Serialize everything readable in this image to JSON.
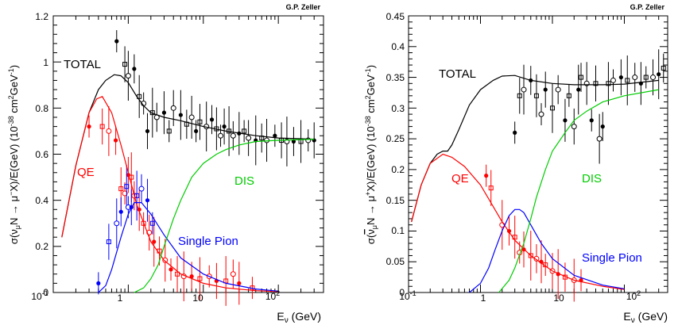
{
  "chart_data": [
    {
      "type": "line",
      "author": "G.P. Zeller",
      "xscale": "log",
      "xlim": [
        0.1,
        400
      ],
      "ylim": [
        0,
        1.2
      ],
      "xticks": [
        0.1,
        1,
        10,
        100
      ],
      "xtick_labels": [
        "10⁻¹",
        "1",
        "10",
        "10²"
      ],
      "yticks": [
        0,
        0.2,
        0.4,
        0.6,
        0.8,
        1.0,
        1.2
      ],
      "ytick_labels": [
        "0",
        "0.2",
        "0.4",
        "0.6",
        "0.8",
        "1",
        "1.2"
      ],
      "xlabel": "Eν (GeV)",
      "ylabel": "σ(νμN → μ⁻X)/E(GeV)  (10⁻³⁸ cm²GeV⁻¹)",
      "series": [
        {
          "name": "TOTAL",
          "color": "#000000",
          "x": [
            0.13,
            0.2,
            0.3,
            0.4,
            0.5,
            0.65,
            0.8,
            1.0,
            1.3,
            1.6,
            2.0,
            3,
            5,
            10,
            20,
            50,
            100,
            300
          ],
          "y": [
            0.24,
            0.55,
            0.78,
            0.88,
            0.92,
            0.945,
            0.94,
            0.91,
            0.85,
            0.81,
            0.78,
            0.76,
            0.745,
            0.72,
            0.7,
            0.68,
            0.67,
            0.665
          ]
        },
        {
          "name": "QE",
          "color": "#ff0000",
          "x": [
            0.13,
            0.2,
            0.3,
            0.38,
            0.45,
            0.6,
            0.8,
            1.0,
            1.3,
            2,
            3,
            5,
            10,
            20,
            50,
            100
          ],
          "y": [
            0.24,
            0.55,
            0.78,
            0.84,
            0.85,
            0.78,
            0.64,
            0.52,
            0.38,
            0.22,
            0.14,
            0.08,
            0.04,
            0.02,
            0.008,
            0.004
          ]
        },
        {
          "name": "Single Pion",
          "color": "#0000ff",
          "x": [
            0.4,
            0.5,
            0.6,
            0.8,
            1.0,
            1.2,
            1.5,
            2,
            3,
            5,
            10,
            20,
            50,
            100
          ],
          "y": [
            0.0,
            0.03,
            0.1,
            0.24,
            0.34,
            0.39,
            0.39,
            0.34,
            0.25,
            0.15,
            0.08,
            0.04,
            0.015,
            0.006
          ]
        },
        {
          "name": "DIS",
          "color": "#00cc00",
          "x": [
            1.2,
            1.6,
            2,
            2.5,
            3,
            4,
            5,
            7,
            10,
            15,
            20,
            30,
            50,
            100,
            300
          ],
          "y": [
            0.0,
            0.02,
            0.06,
            0.12,
            0.2,
            0.32,
            0.4,
            0.5,
            0.56,
            0.6,
            0.62,
            0.64,
            0.655,
            0.66,
            0.665
          ]
        }
      ],
      "measurements": [
        {
          "group": "TOTAL",
          "color": "#000000",
          "points": [
            [
              0.7,
              1.09
            ],
            [
              0.9,
              0.99
            ],
            [
              1.0,
              0.94
            ],
            [
              1.2,
              0.97
            ],
            [
              1.4,
              0.85
            ],
            [
              1.6,
              0.82
            ],
            [
              1.8,
              0.7
            ],
            [
              2.1,
              0.78
            ],
            [
              2.4,
              0.76
            ],
            [
              3,
              0.78
            ],
            [
              3.5,
              0.7
            ],
            [
              4,
              0.8
            ],
            [
              5,
              0.77
            ],
            [
              6,
              0.73
            ],
            [
              7,
              0.76
            ],
            [
              8,
              0.7
            ],
            [
              9,
              0.74
            ],
            [
              11,
              0.72
            ],
            [
              13,
              0.75
            ],
            [
              15,
              0.71
            ],
            [
              17,
              0.68
            ],
            [
              19,
              0.72
            ],
            [
              22,
              0.7
            ],
            [
              25,
              0.68
            ],
            [
              30,
              0.69
            ],
            [
              35,
              0.7
            ],
            [
              40,
              0.67
            ],
            [
              50,
              0.66
            ],
            [
              60,
              0.67
            ],
            [
              70,
              0.66
            ],
            [
              90,
              0.68
            ],
            [
              110,
              0.66
            ],
            [
              130,
              0.655
            ],
            [
              160,
              0.655
            ],
            [
              200,
              0.655
            ],
            [
              250,
              0.66
            ],
            [
              300,
              0.66
            ]
          ]
        },
        {
          "group": "QE",
          "color": "#ff0000",
          "points": [
            [
              0.3,
              0.72
            ],
            [
              0.45,
              0.72
            ],
            [
              0.55,
              0.7
            ],
            [
              0.68,
              0.66
            ],
            [
              0.8,
              0.45
            ],
            [
              0.9,
              0.43
            ],
            [
              1.0,
              0.51
            ],
            [
              1.1,
              0.5
            ],
            [
              1.2,
              0.42
            ],
            [
              1.4,
              0.36
            ],
            [
              1.6,
              0.3
            ],
            [
              1.9,
              0.26
            ],
            [
              2.2,
              0.22
            ],
            [
              2.6,
              0.18
            ],
            [
              3.1,
              0.14
            ],
            [
              3.7,
              0.1
            ],
            [
              4.5,
              0.08
            ],
            [
              5.5,
              0.07
            ],
            [
              7,
              0.07
            ],
            [
              9,
              0.06
            ],
            [
              12,
              0.07
            ],
            [
              15,
              0.05
            ],
            [
              20,
              0.05
            ],
            [
              25,
              0.08
            ],
            [
              30,
              0.04
            ],
            [
              45,
              0.02
            ]
          ]
        },
        {
          "group": "Single Pion",
          "color": "#0000ff",
          "points": [
            [
              0.4,
              0.04
            ],
            [
              0.55,
              0.22
            ],
            [
              0.7,
              0.3
            ],
            [
              0.8,
              0.35
            ],
            [
              0.95,
              0.46
            ],
            [
              1.0,
              0.37
            ],
            [
              1.1,
              0.37
            ],
            [
              1.3,
              0.42
            ],
            [
              1.5,
              0.45
            ],
            [
              1.8,
              0.4
            ],
            [
              2.1,
              0.3
            ]
          ]
        }
      ],
      "annotations": [
        "TOTAL",
        "QE",
        "DIS",
        "Single Pion"
      ],
      "legend": "none"
    },
    {
      "type": "line",
      "author": "G.P. Zeller",
      "xscale": "log",
      "xlim": [
        0.1,
        400
      ],
      "ylim": [
        0,
        0.45
      ],
      "xticks": [
        0.1,
        1,
        10,
        100
      ],
      "xtick_labels": [
        "10⁻¹",
        "1",
        "10",
        "10²"
      ],
      "yticks": [
        0,
        0.05,
        0.1,
        0.15,
        0.2,
        0.25,
        0.3,
        0.35,
        0.4,
        0.45
      ],
      "ytick_labels": [
        "0",
        "0.05",
        "0.1",
        "0.15",
        "0.2",
        "0.25",
        "0.3",
        "0.35",
        "0.4",
        "0.45"
      ],
      "xlabel": "Eν (GeV)",
      "ylabel": "σ(ν̄μN → μ⁺X)/E(GeV)  (10⁻³⁸ cm²GeV⁻¹)",
      "series": [
        {
          "name": "TOTAL",
          "color": "#000000",
          "x": [
            0.11,
            0.15,
            0.2,
            0.25,
            0.3,
            0.35,
            0.4,
            0.5,
            0.7,
            1.0,
            1.5,
            2,
            3,
            5,
            10,
            20,
            50,
            100,
            300
          ],
          "y": [
            0.115,
            0.175,
            0.21,
            0.225,
            0.23,
            0.23,
            0.24,
            0.265,
            0.305,
            0.33,
            0.345,
            0.352,
            0.353,
            0.345,
            0.34,
            0.338,
            0.338,
            0.339,
            0.345
          ]
        },
        {
          "name": "QE",
          "color": "#ff0000",
          "x": [
            0.11,
            0.15,
            0.2,
            0.3,
            0.4,
            0.6,
            1.0,
            1.5,
            2,
            3,
            5,
            10,
            20,
            50,
            100
          ],
          "y": [
            0.115,
            0.175,
            0.21,
            0.225,
            0.22,
            0.205,
            0.175,
            0.14,
            0.115,
            0.085,
            0.06,
            0.035,
            0.02,
            0.01,
            0.005
          ]
        },
        {
          "name": "Single Pion",
          "color": "#0000ff",
          "x": [
            0.7,
            1.0,
            1.3,
            1.6,
            2,
            2.5,
            3,
            3.5,
            4,
            5,
            7,
            10,
            20,
            50,
            100
          ],
          "y": [
            0.0,
            0.015,
            0.04,
            0.07,
            0.1,
            0.125,
            0.135,
            0.135,
            0.13,
            0.11,
            0.08,
            0.055,
            0.028,
            0.012,
            0.006
          ]
        },
        {
          "name": "DIS",
          "color": "#00cc00",
          "x": [
            1.8,
            2.5,
            3,
            4,
            5,
            6,
            8,
            10,
            15,
            20,
            30,
            50,
            100,
            300
          ],
          "y": [
            0.0,
            0.02,
            0.04,
            0.08,
            0.12,
            0.155,
            0.2,
            0.23,
            0.26,
            0.28,
            0.295,
            0.31,
            0.32,
            0.33
          ]
        }
      ],
      "measurements": [
        {
          "group": "TOTAL",
          "color": "#000000",
          "points": [
            [
              3,
              0.26
            ],
            [
              3.5,
              0.32
            ],
            [
              4,
              0.33
            ],
            [
              5,
              0.345
            ],
            [
              6,
              0.32
            ],
            [
              7,
              0.29
            ],
            [
              8,
              0.33
            ],
            [
              10,
              0.3
            ],
            [
              12,
              0.33
            ],
            [
              15,
              0.28
            ],
            [
              17,
              0.32
            ],
            [
              20,
              0.27
            ],
            [
              23,
              0.33
            ],
            [
              25,
              0.35
            ],
            [
              30,
              0.34
            ],
            [
              35,
              0.28
            ],
            [
              40,
              0.34
            ],
            [
              45,
              0.25
            ],
            [
              50,
              0.27
            ],
            [
              60,
              0.34
            ],
            [
              70,
              0.345
            ],
            [
              90,
              0.35
            ],
            [
              110,
              0.345
            ],
            [
              140,
              0.35
            ],
            [
              170,
              0.34
            ],
            [
              200,
              0.35
            ],
            [
              250,
              0.35
            ],
            [
              300,
              0.355
            ],
            [
              350,
              0.365
            ]
          ]
        },
        {
          "group": "QE",
          "color": "#ff0000",
          "points": [
            [
              1.2,
              0.19
            ],
            [
              1.4,
              0.17
            ],
            [
              2.0,
              0.11
            ],
            [
              2.5,
              0.1
            ],
            [
              3,
              0.09
            ],
            [
              3.5,
              0.065
            ],
            [
              4,
              0.07
            ],
            [
              5,
              0.06
            ],
            [
              6,
              0.055
            ],
            [
              7,
              0.05
            ],
            [
              8,
              0.045
            ],
            [
              10,
              0.035
            ],
            [
              12,
              0.03
            ],
            [
              15,
              0.025
            ],
            [
              20,
              0.02
            ],
            [
              25,
              0.02
            ]
          ]
        }
      ],
      "annotations": [
        "TOTAL",
        "QE",
        "DIS",
        "Single Pion"
      ],
      "legend": "none"
    }
  ]
}
